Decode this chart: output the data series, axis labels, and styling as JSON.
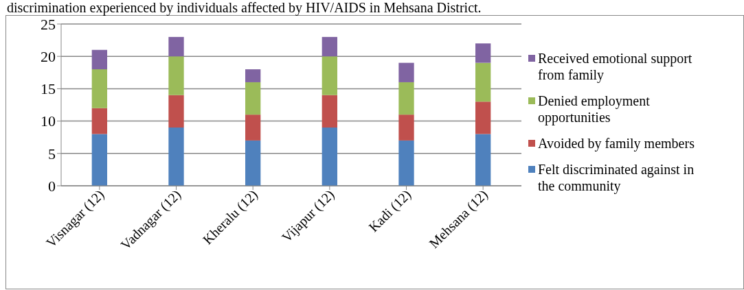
{
  "chart_data": {
    "type": "bar",
    "title": "discrimination experienced by individuals affected by HIV/AIDS in Mehsana District.",
    "categories": [
      "Visnagar (12)",
      "Vadnagar (12)",
      "Kheralu (12)",
      "Vijapur (12)",
      "Kadi (12)",
      "Mehsana (12)"
    ],
    "series": [
      {
        "name": "Felt discriminated against in the community",
        "color": "#4f81bd",
        "values": [
          8,
          9,
          7,
          9,
          7,
          8
        ]
      },
      {
        "name": "Avoided by family members",
        "color": "#c0504d",
        "values": [
          4,
          5,
          4,
          5,
          4,
          5
        ]
      },
      {
        "name": "Denied employment opportunities",
        "color": "#9bbb59",
        "values": [
          6,
          6,
          5,
          6,
          5,
          6
        ]
      },
      {
        "name": "Received emotional support from family",
        "color": "#8064a2",
        "values": [
          3,
          3,
          2,
          3,
          3,
          3
        ]
      }
    ],
    "stacked": true,
    "ylim": [
      0,
      25
    ],
    "yticks": [
      0,
      5,
      10,
      15,
      20,
      25
    ],
    "grid": "y",
    "legend": "right"
  }
}
